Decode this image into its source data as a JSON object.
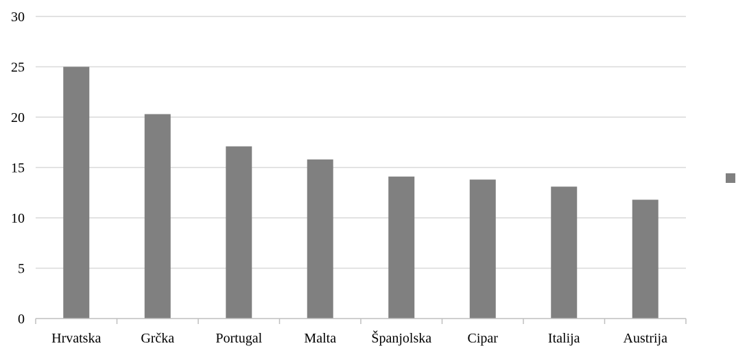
{
  "chart_data": {
    "type": "bar",
    "categories": [
      "Hrvatska",
      "Grčka",
      "Portugal",
      "Malta",
      "Španjolska",
      "Cipar",
      "Italija",
      "Austrija"
    ],
    "series": [
      {
        "name": "%",
        "values": [
          25.0,
          20.3,
          17.1,
          15.8,
          14.1,
          13.8,
          13.1,
          11.8
        ],
        "color": "#808080"
      }
    ],
    "ylim": [
      0,
      30
    ],
    "yticks": [
      "0",
      "5",
      "10",
      "15",
      "20",
      "25",
      "30"
    ],
    "grid": true,
    "legend_position": "right",
    "gridline_color": "#d9d9d9",
    "axis_color": "#bfbfbf"
  }
}
